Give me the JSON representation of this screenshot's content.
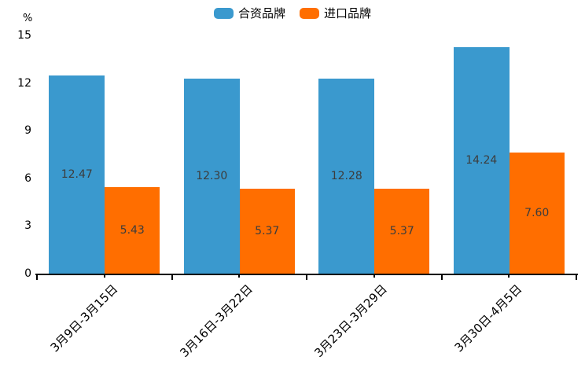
{
  "legend": {
    "items": [
      {
        "label": "合资品牌",
        "color": "#3A99CE"
      },
      {
        "label": "进口品牌",
        "color": "#FF6E00"
      }
    ]
  },
  "chart_data": {
    "type": "bar",
    "title": "",
    "categories": [
      "3月9日-3月15日",
      "3月16日-3月22日",
      "3月23日-3月29日",
      "3月30日-4月5日"
    ],
    "series": [
      {
        "name": "合资品牌",
        "color": "#3A99CE",
        "values": [
          12.47,
          12.3,
          12.28,
          14.24
        ]
      },
      {
        "name": "进口品牌",
        "color": "#FF6E00",
        "values": [
          5.43,
          5.37,
          5.37,
          7.6
        ]
      }
    ],
    "xlabel": "",
    "ylabel": "%",
    "ylim": [
      0,
      15
    ],
    "yticks": [
      0,
      3,
      6,
      9,
      12,
      15
    ],
    "grid": false,
    "legend_position": "top",
    "value_labels": true,
    "value_label_decimals": 2,
    "x_label_rotation_deg": 45
  }
}
